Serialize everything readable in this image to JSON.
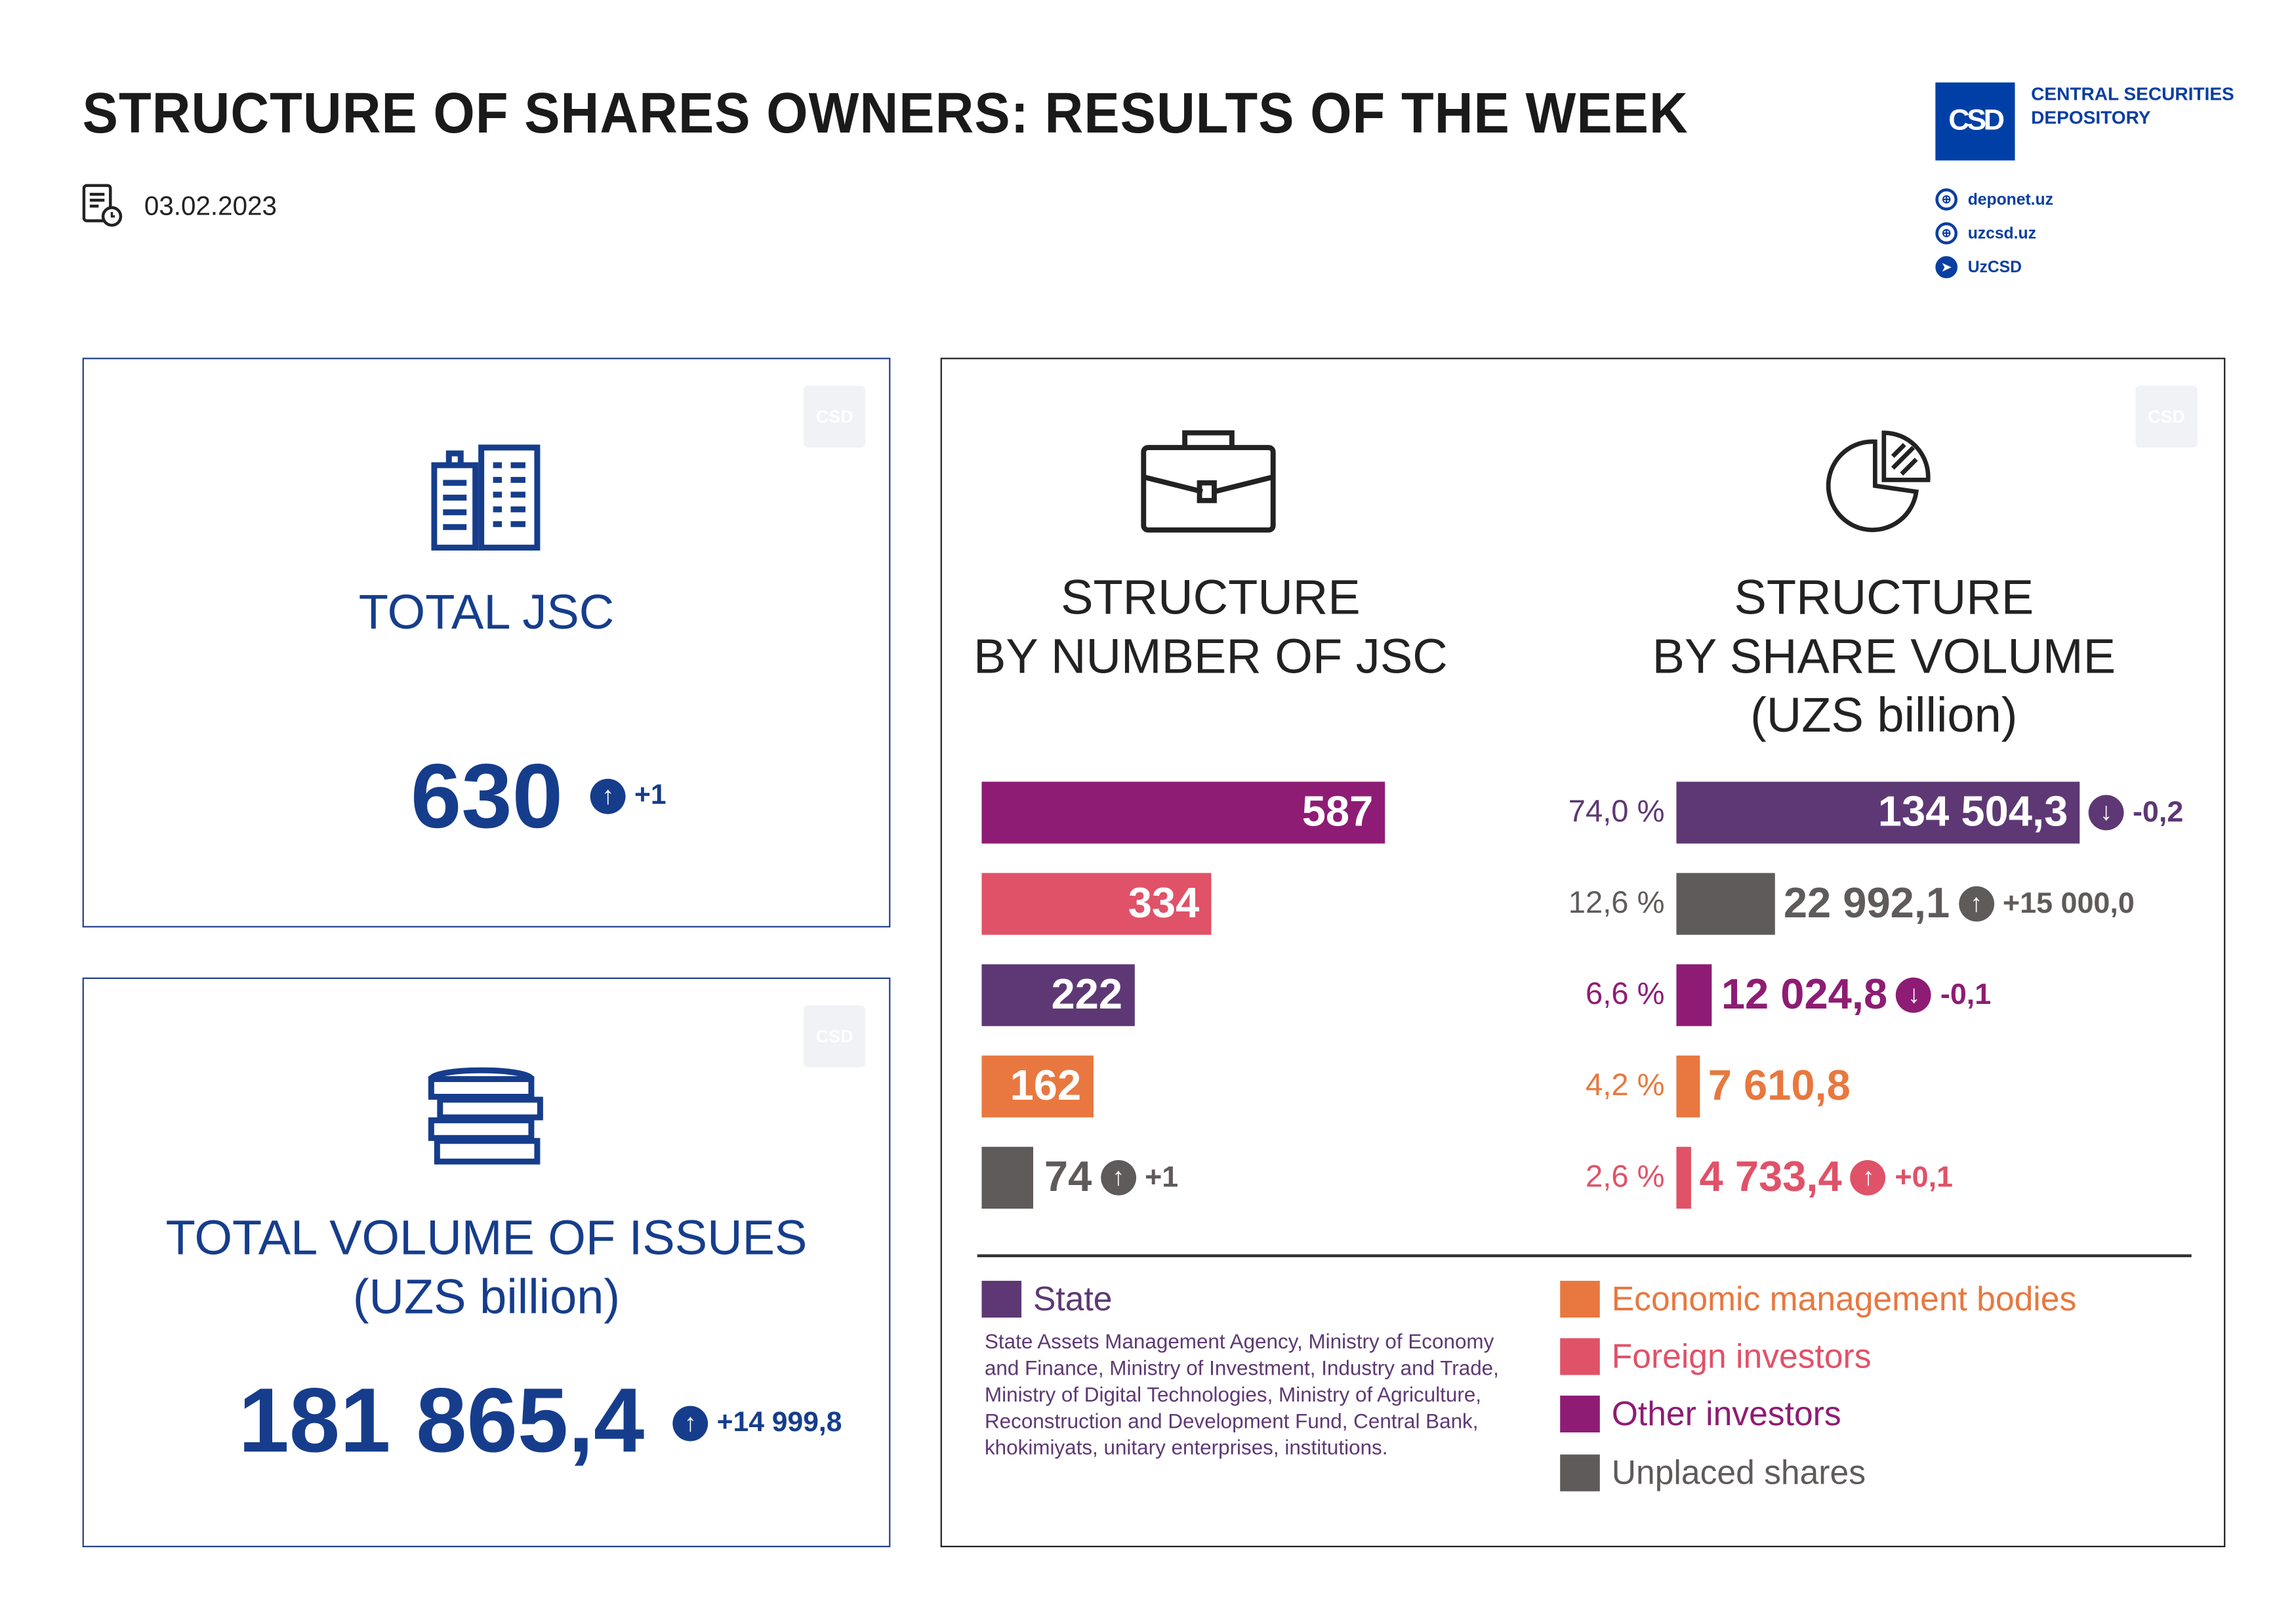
{
  "header": {
    "title": "STRUCTURE OF SHARES OWNERS: RESULTS OF THE WEEK",
    "date": "03.02.2023",
    "logo_mark": "CSD",
    "logo_text_1": "CENTRAL SECURITIES",
    "logo_text_2": "DEPOSITORY",
    "links": [
      {
        "icon": "globe-icon",
        "label": "deponet.uz"
      },
      {
        "icon": "globe-icon",
        "label": "uzcsd.uz"
      },
      {
        "icon": "telegram-icon",
        "label": "UzCSD"
      }
    ]
  },
  "colors": {
    "state": "#5e3874",
    "other": "#8e1c74",
    "foreign": "#e05268",
    "economic": "#e8783f",
    "unplaced": "#5f5b5a",
    "brand": "#0a3ea0"
  },
  "total_jsc": {
    "label": "TOTAL JSC",
    "value": "630",
    "change": "+1",
    "direction": "up"
  },
  "total_volume": {
    "label_1": "TOTAL VOLUME OF ISSUES",
    "label_2": "(UZS billion)",
    "value": "181 865,4",
    "change": "+14 999,8",
    "direction": "up"
  },
  "structure_jsc": {
    "title_1": "STRUCTURE",
    "title_2": "BY NUMBER OF JSC"
  },
  "structure_volume": {
    "title_1": "STRUCTURE",
    "title_2": "BY SHARE VOLUME",
    "title_3": "(UZS billion)"
  },
  "chart_data": [
    {
      "type": "bar",
      "title": "STRUCTURE BY NUMBER OF JSC",
      "categories": [
        "Other investors",
        "Foreign investors",
        "State",
        "Economic management bodies",
        "Unplaced shares"
      ],
      "values": [
        587,
        334,
        222,
        162,
        74
      ],
      "labels": [
        "587",
        "334",
        "222",
        "162",
        "74"
      ],
      "changes": [
        "",
        "",
        "",
        "",
        "+1"
      ],
      "directions": [
        "",
        "",
        "",
        "",
        "up"
      ]
    },
    {
      "type": "bar",
      "title": "STRUCTURE BY SHARE VOLUME (UZS billion)",
      "categories": [
        "State",
        "Unplaced shares",
        "Other investors",
        "Economic management bodies",
        "Foreign investors"
      ],
      "values": [
        134504.3,
        22992.1,
        12024.8,
        7610.8,
        4733.4
      ],
      "labels": [
        "134 504,3",
        "22 992,1",
        "12 024,8",
        "7 610,8",
        "4 733,4"
      ],
      "percents": [
        "74,0 %",
        "12,6 %",
        "6,6 %",
        "4,2 %",
        "2,6 %"
      ],
      "changes": [
        "-0,2",
        "+15 000,0",
        "-0,1",
        "",
        "+0,1"
      ],
      "directions": [
        "down",
        "up",
        "down",
        "",
        "up"
      ]
    }
  ],
  "legend": {
    "state": "State",
    "state_desc": "State Assets Management Agency, Ministry of Economy and Finance, Ministry of Investment, Industry and Trade, Ministry of Digital Technologies, Ministry of Agriculture, Reconstruction and Development Fund, Central Bank, khokimiyats, unitary enterprises, institutions.",
    "economic": "Economic management bodies",
    "foreign": "Foreign investors",
    "other": "Other investors",
    "unplaced": "Unplaced shares"
  }
}
